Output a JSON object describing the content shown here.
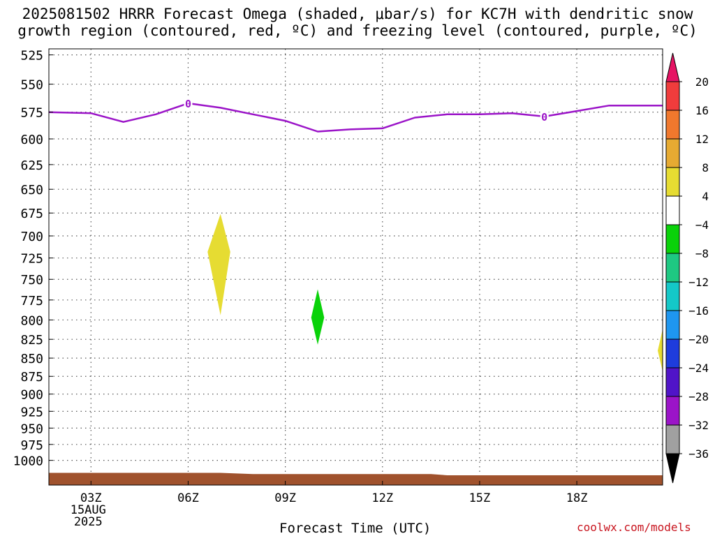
{
  "title_line1": "2025081502 HRRR Forecast Omega (shaded, μbar/s) for KC7H with dendritic snow",
  "title_line2": "growth region (contoured, red, ºC) and freezing level (contoured, purple, ºC)",
  "credit": "coolwx.com/models",
  "chart_data": {
    "type": "time-height cross section",
    "title": "2025081502 HRRR Forecast Omega (shaded, μbar/s) for KC7H with dendritic snow growth region (contoured, red, ºC) and freezing level (contoured, purple, ºC)",
    "xlabel": "Forecast Time (UTC)",
    "ylabel": "",
    "x_unit": "forecast hour (UTC) on 15AUG 2025",
    "xlim": [
      1.7,
      20.65
    ],
    "y_axis": "pressure (hPa), log scale, inverted",
    "ylim": [
      1040,
      520
    ],
    "y_ticks": [
      525,
      550,
      575,
      600,
      625,
      650,
      675,
      700,
      725,
      750,
      775,
      800,
      825,
      850,
      875,
      900,
      925,
      950,
      975,
      1000
    ],
    "x_ticks": [
      {
        "hour": 3,
        "label": "03Z",
        "sublabels": [
          "15AUG",
          "2025"
        ]
      },
      {
        "hour": 6,
        "label": "06Z",
        "sublabels": []
      },
      {
        "hour": 9,
        "label": "09Z",
        "sublabels": []
      },
      {
        "hour": 12,
        "label": "12Z",
        "sublabels": []
      },
      {
        "hour": 15,
        "label": "15Z",
        "sublabels": []
      },
      {
        "hour": 18,
        "label": "18Z",
        "sublabels": []
      }
    ],
    "grid": true,
    "freezing_level": {
      "color": "#9b14c8",
      "contour_label": "0",
      "label_hours": [
        6,
        17
      ],
      "points": [
        {
          "hour": 1.7,
          "p": 575
        },
        {
          "hour": 3.0,
          "p": 576
        },
        {
          "hour": 4.0,
          "p": 584
        },
        {
          "hour": 5.0,
          "p": 577
        },
        {
          "hour": 6.0,
          "p": 567
        },
        {
          "hour": 7.0,
          "p": 571
        },
        {
          "hour": 8.0,
          "p": 577
        },
        {
          "hour": 9.0,
          "p": 583
        },
        {
          "hour": 10.0,
          "p": 593
        },
        {
          "hour": 11.0,
          "p": 591
        },
        {
          "hour": 12.0,
          "p": 590
        },
        {
          "hour": 13.0,
          "p": 580
        },
        {
          "hour": 14.0,
          "p": 577
        },
        {
          "hour": 15.0,
          "p": 577
        },
        {
          "hour": 16.0,
          "p": 576
        },
        {
          "hour": 17.0,
          "p": 579
        },
        {
          "hour": 18.0,
          "p": 574
        },
        {
          "hour": 19.0,
          "p": 569
        },
        {
          "hour": 20.65,
          "p": 569
        }
      ]
    },
    "omega_features": [
      {
        "name": "upward 4 to 8",
        "color": "#e6dc32",
        "points": [
          {
            "hour": 7.0,
            "p": 676
          },
          {
            "hour": 7.3,
            "p": 718
          },
          {
            "hour": 7.0,
            "p": 794
          },
          {
            "hour": 6.6,
            "p": 718
          }
        ]
      },
      {
        "name": "downward -8 to -4",
        "color": "#0ad20a",
        "points": [
          {
            "hour": 10.0,
            "p": 762
          },
          {
            "hour": 10.2,
            "p": 797
          },
          {
            "hour": 10.0,
            "p": 832
          },
          {
            "hour": 9.8,
            "p": 797
          }
        ]
      },
      {
        "name": "upward 4 to 8",
        "color": "#e6dc32",
        "points": [
          {
            "hour": 20.65,
            "p": 812
          },
          {
            "hour": 20.5,
            "p": 840
          },
          {
            "hour": 20.65,
            "p": 868
          }
        ]
      }
    ],
    "terrain": {
      "color": "#a0522d",
      "points": [
        {
          "hour": 1.7,
          "p": 1020
        },
        {
          "hour": 7.0,
          "p": 1020
        },
        {
          "hour": 8.0,
          "p": 1022
        },
        {
          "hour": 13.5,
          "p": 1022
        },
        {
          "hour": 14.0,
          "p": 1024
        },
        {
          "hour": 20.65,
          "p": 1024
        }
      ]
    },
    "colorbar": {
      "unit": "μbar/s",
      "labels": [
        "20",
        "16",
        "12",
        "8",
        "4",
        "−4",
        "−8",
        "−12",
        "−16",
        "−20",
        "−24",
        "−28",
        "−32",
        "−36"
      ],
      "colors": [
        "#e61464",
        "#f03c3c",
        "#f0782d",
        "#e6aa32",
        "#e6dc32",
        "#ffffff",
        "#0ad20a",
        "#1ec882",
        "#14c8c8",
        "#1e96f0",
        "#1e3cdc",
        "#5014c8",
        "#9b14c8",
        "#a0a0a0",
        "#000000"
      ]
    }
  }
}
